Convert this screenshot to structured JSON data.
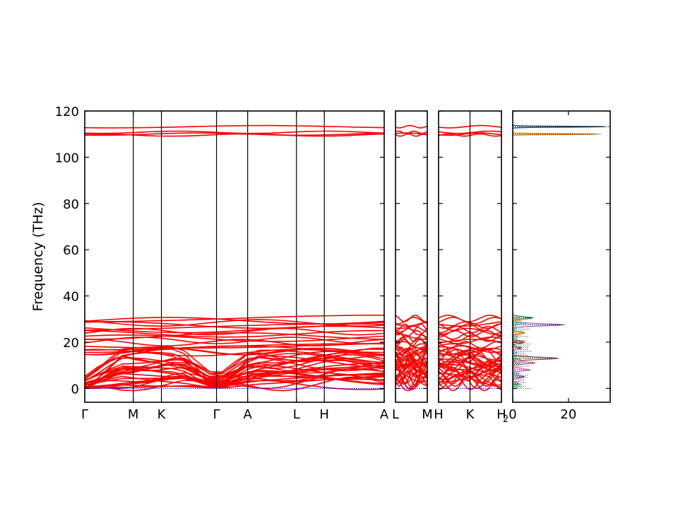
{
  "chart_data": {
    "type": "line",
    "ylabel": "Frequency (THz)",
    "ylim": [
      -6,
      120
    ],
    "yticks": [
      0,
      20,
      40,
      60,
      80,
      100,
      120
    ],
    "band_color": "#ff0000",
    "zero_line_color": "#0000ff",
    "panels": [
      {
        "id": "p1",
        "xticks": [
          {
            "label": "Γ",
            "pos": 0.0
          },
          {
            "label": "M",
            "pos": 0.162
          },
          {
            "label": "K",
            "pos": 0.256
          },
          {
            "label": "Γ",
            "pos": 0.44
          },
          {
            "label": "A",
            "pos": 0.544
          },
          {
            "label": "L",
            "pos": 0.707
          },
          {
            "label": "H",
            "pos": 0.8
          },
          {
            "label": "A",
            "pos": 1.0
          }
        ]
      },
      {
        "id": "p2",
        "xticks": [
          {
            "label": "L",
            "pos": 0.0
          },
          {
            "label": "M",
            "pos": 1.0
          }
        ]
      },
      {
        "id": "p3",
        "xticks": [
          {
            "label": "H",
            "pos": 0.0
          },
          {
            "label": "K",
            "pos": 0.5
          },
          {
            "label": "H",
            "pos": 1.0
          }
        ]
      },
      {
        "id": "dos",
        "xlim": [
          0,
          35
        ],
        "xticks": [
          {
            "label": "0",
            "pos": 0
          },
          {
            "label": "20",
            "pos": 20
          }
        ],
        "xtick_superscript": "2",
        "peaks": [
          {
            "freq": 113.2,
            "value": 33,
            "color": "#1f4e79"
          },
          {
            "freq": 110.0,
            "value": 30,
            "color": "#ff8c00"
          },
          {
            "freq": 27.5,
            "value": 18,
            "color": "#9467bd"
          },
          {
            "freq": 30.5,
            "value": 7,
            "color": "#2ca02c"
          },
          {
            "freq": 24.0,
            "value": 4,
            "color": "#ff8c00"
          },
          {
            "freq": 20.0,
            "value": 4,
            "color": "#d62728"
          },
          {
            "freq": 17.5,
            "value": 3,
            "color": "#1f77b4"
          },
          {
            "freq": 13.0,
            "value": 16,
            "color": "#8c564b"
          },
          {
            "freq": 11.0,
            "value": 8,
            "color": "#e377c2"
          },
          {
            "freq": 8.0,
            "value": 6,
            "color": "#e377c2"
          },
          {
            "freq": 5.0,
            "value": 4,
            "color": "#9467bd"
          },
          {
            "freq": 2.0,
            "value": 2,
            "color": "#17becf"
          }
        ]
      }
    ]
  }
}
